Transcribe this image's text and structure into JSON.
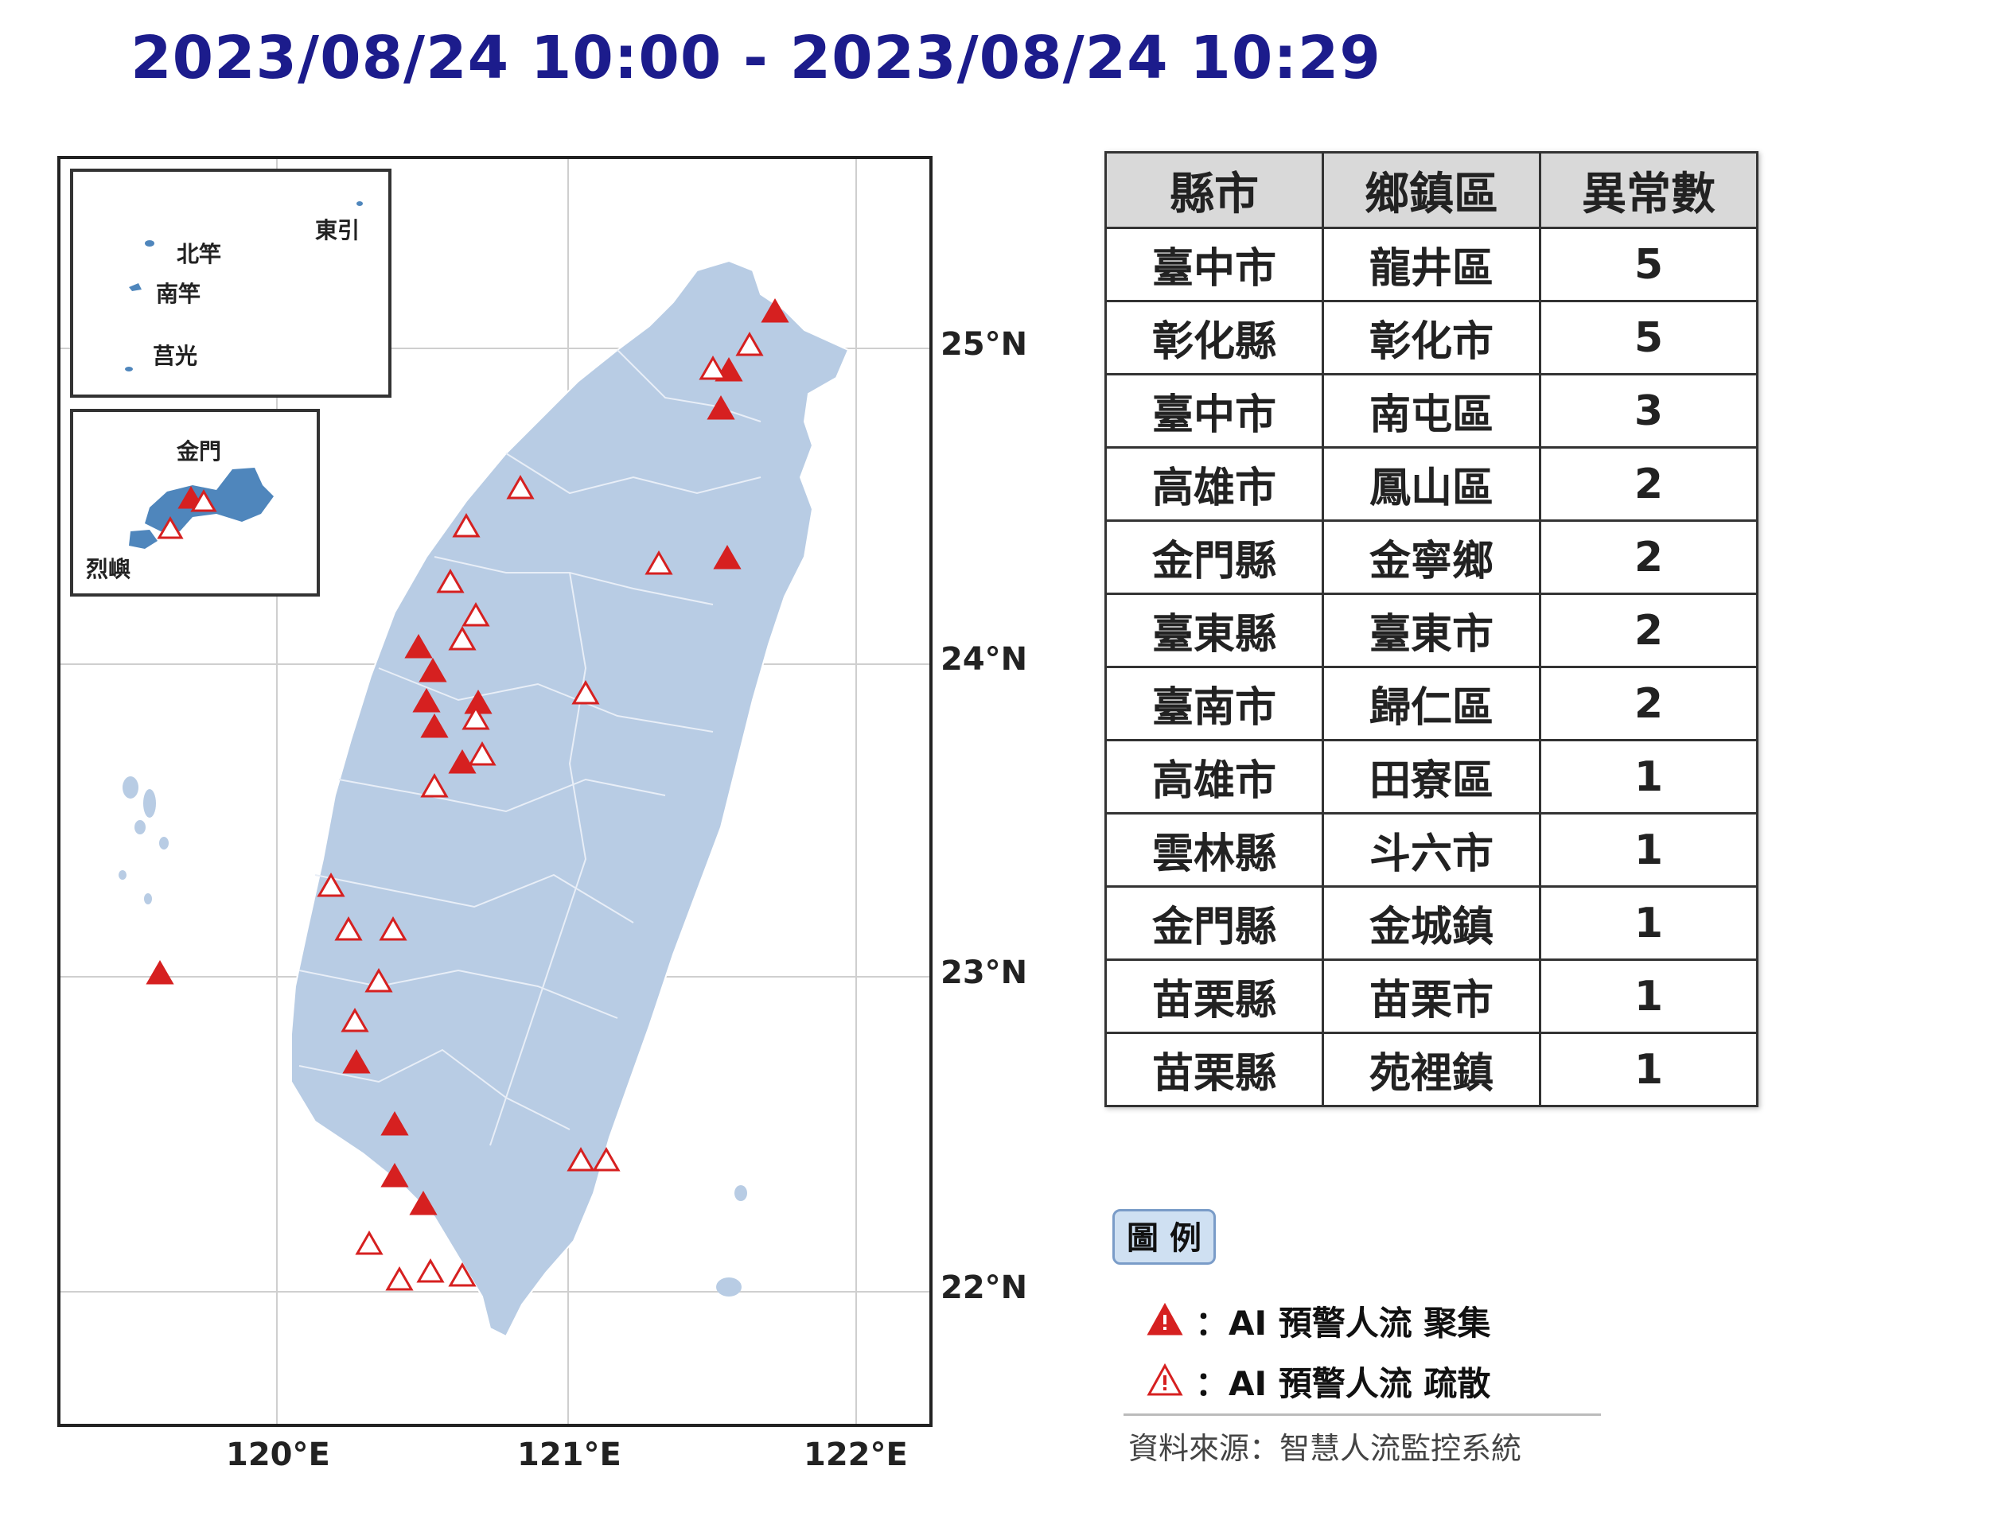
{
  "title": "2023/08/24 10:00 - 2023/08/24 10:29",
  "map": {
    "lat_labels": [
      "25°N",
      "24°N",
      "23°N",
      "22°N"
    ],
    "lon_labels": [
      "120°E",
      "121°E",
      "122°E"
    ],
    "inset_north": {
      "labels": [
        "東引",
        "北竿",
        "南竿",
        "莒光"
      ]
    },
    "inset_kinmen": {
      "labels": [
        "金門",
        "烈嶼"
      ]
    },
    "colors": {
      "land": "#b8cce4",
      "kinmen": "#4f86bc",
      "marker": "#d62020",
      "grid": "#cccccc"
    }
  },
  "table": {
    "headers": [
      "縣市",
      "鄉鎮區",
      "異常數"
    ],
    "rows": [
      [
        "臺中市",
        "龍井區",
        "5"
      ],
      [
        "彰化縣",
        "彰化市",
        "5"
      ],
      [
        "臺中市",
        "南屯區",
        "3"
      ],
      [
        "高雄市",
        "鳳山區",
        "2"
      ],
      [
        "金門縣",
        "金寧鄉",
        "2"
      ],
      [
        "臺東縣",
        "臺東市",
        "2"
      ],
      [
        "臺南市",
        "歸仁區",
        "2"
      ],
      [
        "高雄市",
        "田寮區",
        "1"
      ],
      [
        "雲林縣",
        "斗六市",
        "1"
      ],
      [
        "金門縣",
        "金城鎮",
        "1"
      ],
      [
        "苗栗縣",
        "苗栗市",
        "1"
      ],
      [
        "苗栗縣",
        "苑裡鎮",
        "1"
      ]
    ]
  },
  "legend": {
    "title": "圖 例",
    "items": [
      {
        "icon": "filled-warning-triangle-icon",
        "label": "：AI 預警人流 聚集"
      },
      {
        "icon": "outline-warning-triangle-icon",
        "label": "：AI 預警人流 疏散"
      }
    ]
  },
  "source": "資料來源：智慧人流監控系統"
}
